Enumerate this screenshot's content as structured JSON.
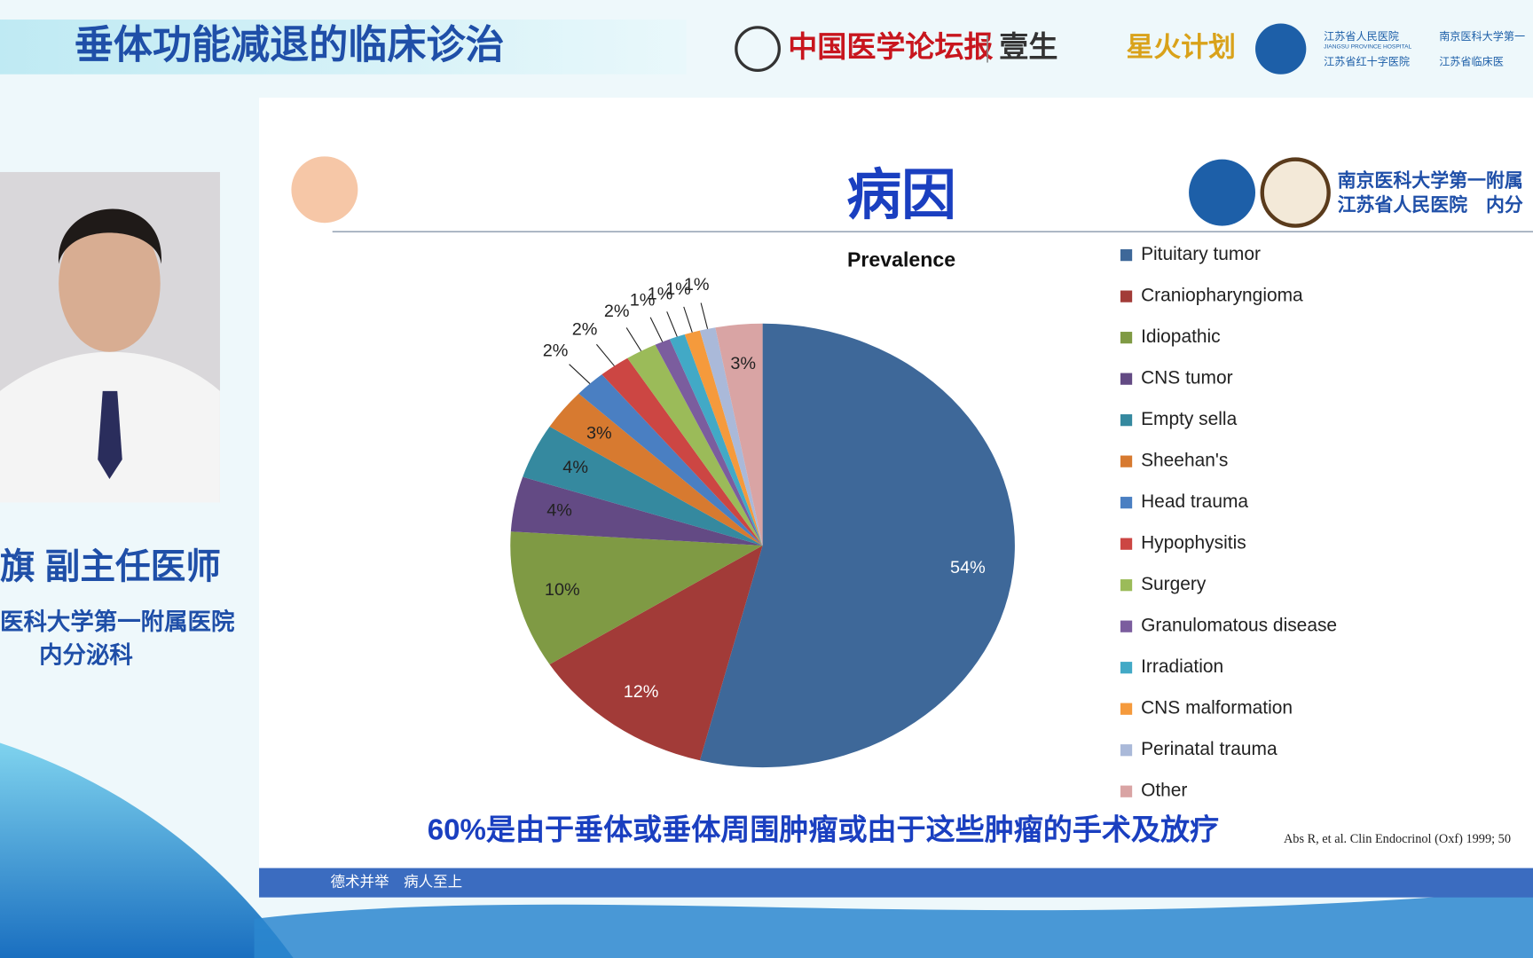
{
  "header": {
    "title": "垂体功能减退的临床诊治",
    "logo_1": "中国医学论坛报",
    "logo_2": "壹生",
    "logo_3": "星火计划",
    "hospital_1": "江苏省人民医院",
    "hospital_1_en": "JIANGSU PROVINCE HOSPITAL",
    "hospital_2": "南京医科大学第一",
    "hospital_3": "江苏省红十字医院",
    "hospital_4": "江苏省临床医"
  },
  "speaker": {
    "name": "旗  副主任医师",
    "affiliation": "医科大学第一附属医院",
    "department": "内分泌科"
  },
  "slide": {
    "title": "病因",
    "institution_1": "南京医科大学第一附属",
    "institution_2": "江苏省人民医院　内分",
    "caption": "60%是由于垂体或垂体周围肿瘤或由于这些肿瘤的手术及放疗",
    "citation": "Abs R, et al. Clin Endocrinol (Oxf) 1999; 50",
    "motto": "德术并举　病人至上"
  },
  "chart_data": {
    "type": "pie",
    "title": "Prevalence",
    "categories": [
      "Pituitary tumor",
      "Craniopharyngioma",
      "Idiopathic",
      "CNS tumor",
      "Empty sella",
      "Sheehan's",
      "Head trauma",
      "Hypophysitis",
      "Surgery",
      "Granulomatous disease",
      "Irradiation",
      "CNS malformation",
      "Perinatal trauma",
      "Other"
    ],
    "values": [
      54,
      12,
      10,
      4,
      4,
      3,
      2,
      2,
      2,
      1,
      1,
      1,
      1,
      3
    ],
    "value_labels": [
      "54%",
      "12%",
      "10%",
      "4%",
      "4%",
      "3%",
      "2%",
      "2%",
      "2%",
      "1%",
      "1%",
      "1%",
      "1%",
      "3%"
    ],
    "colors": [
      "#3e6899",
      "#a23b38",
      "#7f9a44",
      "#634a84",
      "#35899f",
      "#d77a30",
      "#4a7fc2",
      "#cc4643",
      "#9bbb59",
      "#7b5d9e",
      "#42a9c6",
      "#f59a3c",
      "#aab9d9",
      "#d9a4a4"
    ],
    "legend": "right"
  }
}
